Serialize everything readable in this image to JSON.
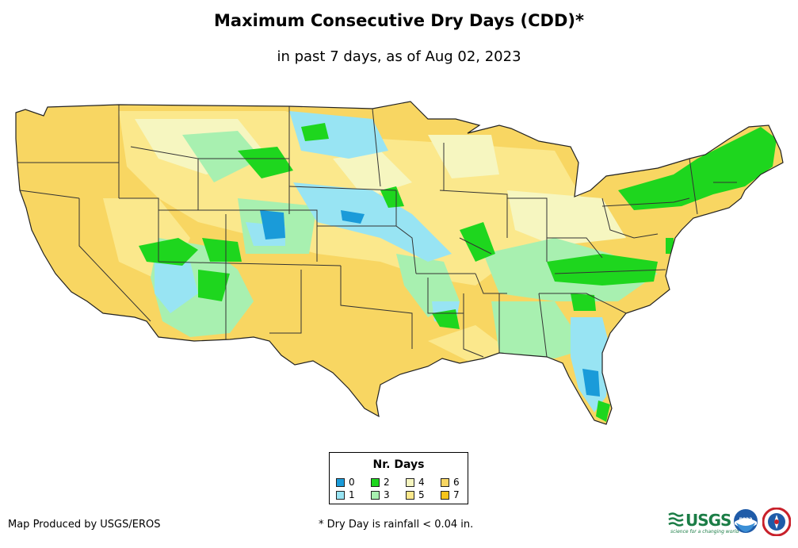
{
  "title": "Maximum Consecutive Dry Days (CDD)*",
  "subtitle": "in past 7 days, as of Aug 02, 2023",
  "legend": {
    "title": "Nr. Days",
    "items": [
      {
        "label": "0",
        "color": "#1a9bd9"
      },
      {
        "label": "1",
        "color": "#98e4f3"
      },
      {
        "label": "2",
        "color": "#1ed61e"
      },
      {
        "label": "3",
        "color": "#a8f0b0"
      },
      {
        "label": "4",
        "color": "#f6f6c0"
      },
      {
        "label": "5",
        "color": "#fbe88c"
      },
      {
        "label": "6",
        "color": "#f8d662"
      },
      {
        "label": "7",
        "color": "#f6c41a"
      }
    ]
  },
  "footer": {
    "credit": "Map Produced by USGS/EROS",
    "footnote": "* Dry Day is rainfall < 0.04 in."
  },
  "logos": {
    "usgs": "USGS",
    "usgs_tagline": "science for a changing world",
    "noaa": "noaa"
  }
}
